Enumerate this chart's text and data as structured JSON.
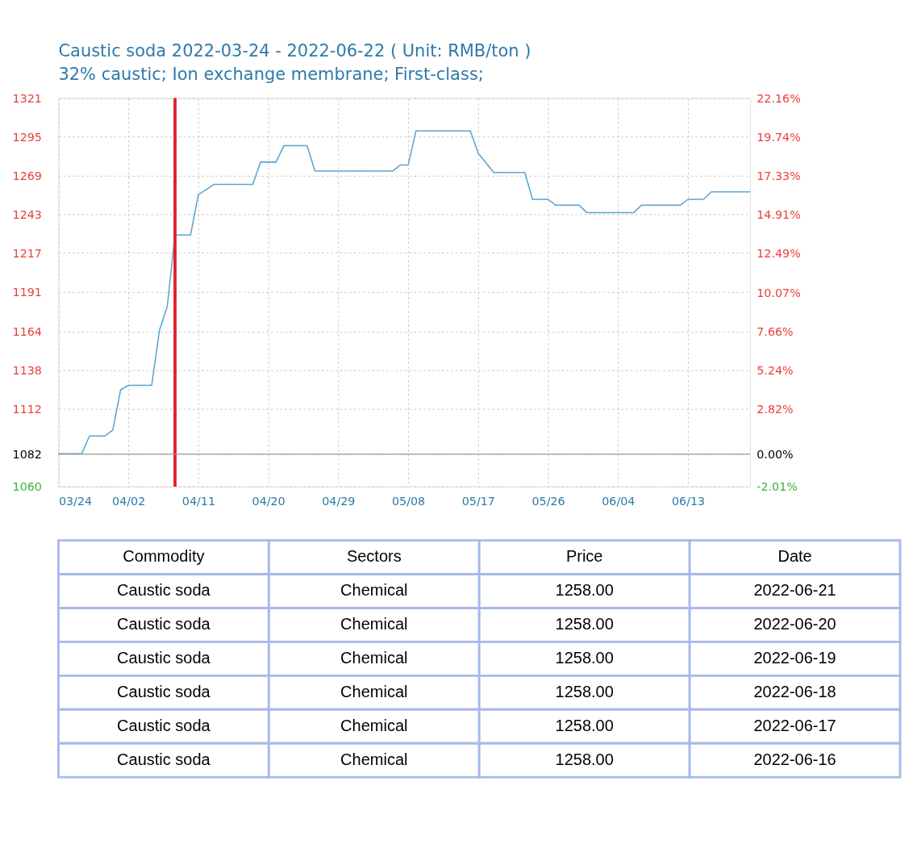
{
  "chart_data": [
    {
      "type": "line",
      "title": "Caustic soda 2022-03-24 - 2022-06-22 ( Unit: RMB/ton )",
      "subtitle": "32% caustic; Ion exchange membrane; First-class;",
      "x": [
        "2022-03-24",
        "2022-03-27",
        "2022-03-28",
        "2022-03-30",
        "2022-03-31",
        "2022-04-01",
        "2022-04-02",
        "2022-04-05",
        "2022-04-06",
        "2022-04-07",
        "2022-04-08",
        "2022-04-10",
        "2022-04-11",
        "2022-04-13",
        "2022-04-18",
        "2022-04-19",
        "2022-04-21",
        "2022-04-22",
        "2022-04-25",
        "2022-04-26",
        "2022-05-06",
        "2022-05-07",
        "2022-05-08",
        "2022-05-09",
        "2022-05-16",
        "2022-05-17",
        "2022-05-19",
        "2022-05-23",
        "2022-05-24",
        "2022-05-26",
        "2022-05-27",
        "2022-05-30",
        "2022-05-31",
        "2022-06-06",
        "2022-06-07",
        "2022-06-12",
        "2022-06-13",
        "2022-06-15",
        "2022-06-16",
        "2022-06-21"
      ],
      "series": [
        {
          "color": "#5ba3d0",
          "values": [
            1082,
            1082,
            1094,
            1094,
            1098,
            1125,
            1128,
            1128,
            1165,
            1181,
            1229,
            1229,
            1256,
            1263,
            1263,
            1278,
            1278,
            1289,
            1289,
            1272,
            1272,
            1276,
            1276,
            1299,
            1299,
            1284,
            1271,
            1271,
            1253,
            1253,
            1249,
            1249,
            1244,
            1244,
            1249,
            1249,
            1253,
            1253,
            1258,
            1258
          ]
        }
      ],
      "xlim": [
        "2022-03-24",
        "2022-06-21"
      ],
      "xticks": [
        {
          "value": "2022-03-24",
          "label": "03/24"
        },
        {
          "value": "2022-04-02",
          "label": "04/02"
        },
        {
          "value": "2022-04-11",
          "label": "04/11"
        },
        {
          "value": "2022-04-20",
          "label": "04/20"
        },
        {
          "value": "2022-04-29",
          "label": "04/29"
        },
        {
          "value": "2022-05-08",
          "label": "05/08"
        },
        {
          "value": "2022-05-17",
          "label": "05/17"
        },
        {
          "value": "2022-05-26",
          "label": "05/26"
        },
        {
          "value": "2022-06-04",
          "label": "06/04"
        },
        {
          "value": "2022-06-13",
          "label": "06/13"
        }
      ],
      "ylim": [
        1060,
        1321
      ],
      "yticks": [
        1060,
        1082,
        1112,
        1138,
        1164,
        1191,
        1217,
        1243,
        1269,
        1295,
        1321
      ],
      "y2lim": [
        -2.01,
        22.16
      ],
      "y2ticks": [
        {
          "value": -2.01,
          "label": "-2.01%"
        },
        {
          "value": 0,
          "label": "0.00%"
        },
        {
          "value": 2.82,
          "label": "2.82%"
        },
        {
          "value": 5.24,
          "label": "5.24%"
        },
        {
          "value": 7.66,
          "label": "7.66%"
        },
        {
          "value": 10.07,
          "label": "10.07%"
        },
        {
          "value": 12.49,
          "label": "12.49%"
        },
        {
          "value": 14.91,
          "label": "14.91%"
        },
        {
          "value": 17.33,
          "label": "17.33%"
        },
        {
          "value": 19.74,
          "label": "19.74%"
        },
        {
          "value": 22.16,
          "label": "22.16%"
        }
      ],
      "grid": true,
      "ref_lines": [
        {
          "axis": "y2",
          "value": 0,
          "color": "#999999"
        },
        {
          "axis": "x",
          "value": "2022-04-08",
          "color": "#e0202a"
        }
      ]
    },
    {
      "type": "other",
      "categories": [
        "Commodity",
        "Sectors",
        "Price",
        "Date"
      ],
      "cell_labels": [
        [
          "Caustic soda",
          "Chemical",
          "1258.00",
          "2022-06-21"
        ],
        [
          "Caustic soda",
          "Chemical",
          "1258.00",
          "2022-06-20"
        ],
        [
          "Caustic soda",
          "Chemical",
          "1258.00",
          "2022-06-19"
        ],
        [
          "Caustic soda",
          "Chemical",
          "1258.00",
          "2022-06-18"
        ],
        [
          "Caustic soda",
          "Chemical",
          "1258.00",
          "2022-06-17"
        ],
        [
          "Caustic soda",
          "Chemical",
          "1258.00",
          "2022-06-16"
        ]
      ]
    }
  ]
}
